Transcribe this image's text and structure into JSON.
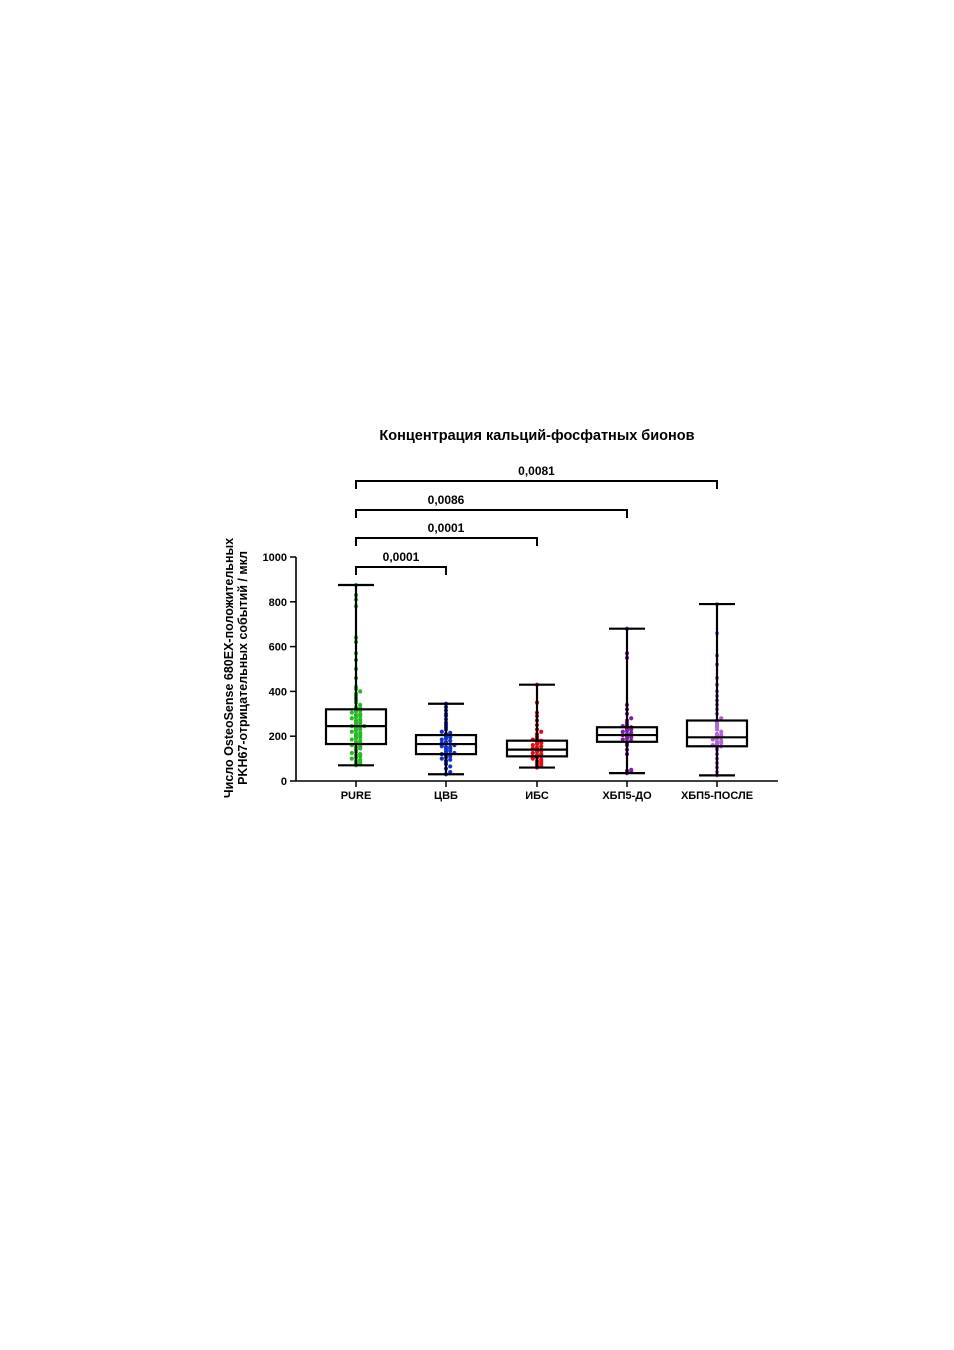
{
  "chart_data": {
    "type": "box",
    "title": "Концентрация кальций-фосфатных бионов",
    "ylabel_line1": "Число OsteoSense 680EX-положительных",
    "ylabel_line2": "PKH67-отрицательных событий / мкл",
    "xlabel": "",
    "ylim": [
      0,
      1000
    ],
    "yticks": [
      0,
      200,
      400,
      600,
      800,
      1000
    ],
    "categories": [
      "PURE",
      "ЦВБ",
      "ИБС",
      "ХБП5-ДО",
      "ХБП5-ПОСЛЕ"
    ],
    "grid": false,
    "legend": "none",
    "series": [
      {
        "color": "#22bb22",
        "box": {
          "min": 70,
          "q1": 165,
          "median": 245,
          "q3": 320,
          "max": 875
        },
        "points": [
          70,
          75,
          80,
          85,
          90,
          95,
          100,
          105,
          110,
          115,
          120,
          125,
          130,
          140,
          145,
          150,
          155,
          160,
          165,
          170,
          175,
          180,
          185,
          190,
          195,
          200,
          205,
          210,
          215,
          220,
          225,
          230,
          235,
          240,
          245,
          245,
          250,
          255,
          260,
          265,
          270,
          275,
          280,
          285,
          290,
          295,
          300,
          305,
          310,
          315,
          320,
          325,
          330,
          340,
          350,
          360,
          370,
          380,
          390,
          400,
          410,
          420,
          460,
          500,
          540,
          570,
          620,
          640,
          780,
          810,
          830,
          875
        ]
      },
      {
        "color": "#1133cc",
        "box": {
          "min": 30,
          "q1": 120,
          "median": 165,
          "q3": 205,
          "max": 345
        },
        "points": [
          30,
          40,
          55,
          65,
          75,
          85,
          90,
          95,
          100,
          105,
          110,
          115,
          120,
          120,
          125,
          130,
          135,
          140,
          145,
          150,
          150,
          155,
          160,
          165,
          165,
          170,
          175,
          180,
          185,
          190,
          195,
          200,
          205,
          210,
          215,
          220,
          230,
          240,
          250,
          260,
          275,
          290,
          300,
          315,
          330,
          345
        ]
      },
      {
        "color": "#dd1111",
        "box": {
          "min": 60,
          "q1": 110,
          "median": 140,
          "q3": 180,
          "max": 430
        },
        "points": [
          60,
          65,
          70,
          75,
          80,
          85,
          90,
          95,
          100,
          105,
          110,
          110,
          115,
          120,
          125,
          130,
          135,
          140,
          140,
          145,
          150,
          155,
          160,
          165,
          170,
          175,
          180,
          185,
          190,
          200,
          210,
          220,
          230,
          250,
          270,
          290,
          305,
          350,
          430
        ]
      },
      {
        "color": "#7a1fa2",
        "box": {
          "min": 35,
          "q1": 175,
          "median": 205,
          "q3": 240,
          "max": 680
        },
        "points": [
          35,
          40,
          45,
          50,
          120,
          140,
          160,
          170,
          175,
          180,
          185,
          190,
          195,
          200,
          205,
          205,
          210,
          215,
          220,
          225,
          230,
          235,
          240,
          245,
          250,
          260,
          270,
          280,
          300,
          320,
          340,
          550,
          570,
          680
        ]
      },
      {
        "color": "#b066d0",
        "box": {
          "min": 25,
          "q1": 155,
          "median": 195,
          "q3": 270,
          "max": 790
        },
        "points": [
          25,
          40,
          60,
          80,
          100,
          120,
          140,
          150,
          155,
          160,
          165,
          170,
          175,
          180,
          185,
          190,
          195,
          200,
          205,
          210,
          220,
          230,
          240,
          250,
          260,
          270,
          280,
          300,
          320,
          340,
          360,
          380,
          400,
          430,
          460,
          520,
          560,
          660,
          790
        ]
      }
    ],
    "annotations": [
      {
        "from": 0,
        "to": 1,
        "label": "0,0001"
      },
      {
        "from": 0,
        "to": 2,
        "label": "0,0001"
      },
      {
        "from": 0,
        "to": 3,
        "label": "0,0086"
      },
      {
        "from": 0,
        "to": 4,
        "label": "0,0081"
      }
    ]
  }
}
